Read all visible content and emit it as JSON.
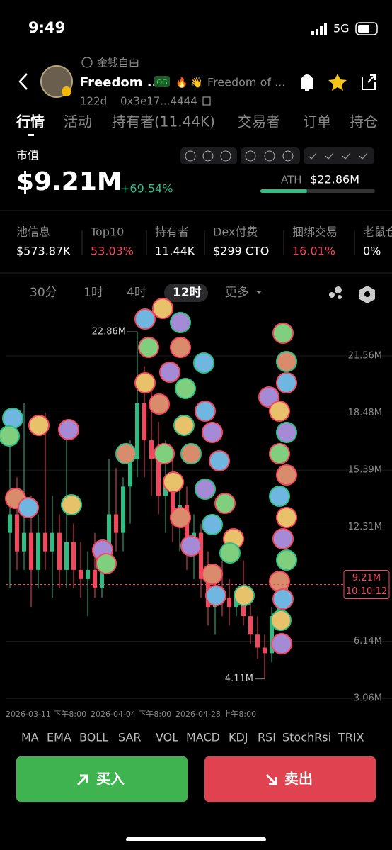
{
  "status": {
    "time": "9:49",
    "network": "5G"
  },
  "token": {
    "subtitle": "金钱自由",
    "name": "Freedom ...",
    "badge": "OG",
    "description": "Freedom of ...",
    "age": "122d",
    "address": "0x3e17...4444"
  },
  "tabs": [
    "行情",
    "活动",
    "持有者(11.44K)",
    "交易者",
    "订单",
    "持仓"
  ],
  "market": {
    "label": "市值",
    "value": "$9.21M",
    "change": "+69.54%",
    "ath_label": "ATH",
    "ath": "$22.86M"
  },
  "stats": [
    {
      "label": "池信息",
      "value": "$573.87K"
    },
    {
      "label": "Top10",
      "value": "53.03%"
    },
    {
      "label": "持有者",
      "value": "11.44K"
    },
    {
      "label": "Dex付费",
      "value": "$299 CTO"
    },
    {
      "label": "捆绑交易",
      "value": "16.01%"
    },
    {
      "label": "老鼠仓",
      "value": "0%"
    }
  ],
  "timeframes": [
    "30分",
    "1时",
    "4时",
    "12时",
    "更多"
  ],
  "chart_data": {
    "type": "candlestick",
    "categories": [
      "2026-03-11 下午8:00",
      null,
      null,
      null,
      null,
      null,
      null,
      null,
      null,
      null,
      null,
      null,
      "2026-04-04 下午8:00",
      null,
      null,
      null,
      null,
      null,
      null,
      null,
      null,
      null,
      null,
      null,
      "2026-04-28 上午8:00",
      null,
      null,
      null,
      null,
      null,
      null,
      null,
      null,
      null,
      null,
      null,
      null,
      null,
      null,
      null
    ],
    "open": [
      12,
      13,
      11,
      12,
      10,
      12,
      11,
      12,
      10,
      11.5,
      10,
      9.5,
      10,
      9,
      10.5,
      13,
      12,
      14.5,
      16,
      19,
      17,
      16,
      14,
      15,
      12.5,
      13.5,
      11,
      12,
      9.5,
      8,
      9,
      8.5,
      8,
      8.5,
      7.5,
      6.5,
      5.8,
      5.5,
      7.5,
      8.5
    ],
    "high": [
      18,
      15,
      19,
      14,
      13,
      18.5,
      14,
      13,
      18,
      12.5,
      11.5,
      11,
      12,
      11,
      16,
      15.5,
      15,
      17,
      22.86,
      21,
      20,
      18,
      17,
      16,
      15,
      14.5,
      13,
      12.5,
      11,
      10,
      10.5,
      9.5,
      9,
      10.5,
      8.5,
      7.5,
      6.5,
      8,
      9.5,
      9.6
    ],
    "low": [
      9,
      10,
      10,
      8,
      9,
      10,
      8.5,
      9,
      9,
      9,
      8.5,
      7.5,
      8.5,
      8.5,
      10,
      11,
      11,
      12.5,
      15,
      15,
      14,
      13,
      12,
      11.5,
      11,
      10,
      9.5,
      8.5,
      7,
      6.5,
      7.5,
      7,
      7.5,
      7,
      6,
      5.2,
      4.11,
      5,
      7,
      8
    ],
    "close": [
      13,
      11,
      12,
      10,
      12,
      11,
      12,
      10,
      11.5,
      10,
      9.5,
      10,
      9,
      10.5,
      13,
      12,
      14.5,
      16,
      19,
      17,
      16,
      14,
      15,
      12.5,
      13.5,
      11,
      12,
      9.5,
      8,
      9,
      8.5,
      8,
      8.5,
      7.5,
      6.5,
      5.8,
      5.5,
      7.5,
      8.5,
      9.21
    ],
    "up_color": "#2ebd85",
    "down_color": "#f6465d",
    "ylim": [
      2.68,
      24.24
    ],
    "yticks": [
      {
        "value": 21.56,
        "label": "21.56M"
      },
      {
        "value": 18.48,
        "label": "18.48M"
      },
      {
        "value": 15.39,
        "label": "15.39M"
      },
      {
        "value": 12.31,
        "label": "12.31M"
      },
      {
        "value": 6.14,
        "label": "6.14M"
      },
      {
        "value": 3.06,
        "label": "3.06M"
      }
    ],
    "grid": true,
    "annotations": [
      {
        "value": 22.86,
        "label": "22.86M",
        "index": 18
      },
      {
        "value": 4.11,
        "label": "4.11M",
        "index": 36
      }
    ],
    "last_price": {
      "value": 9.21,
      "label": "9.21M",
      "time": "10:10:12"
    }
  },
  "indicators": [
    "MA",
    "EMA",
    "BOLL",
    "SAR",
    "VOL",
    "MACD",
    "KDJ",
    "RSI",
    "StochRsi",
    "TRIX"
  ],
  "buttons": {
    "buy": "买入",
    "sell": "卖出"
  }
}
